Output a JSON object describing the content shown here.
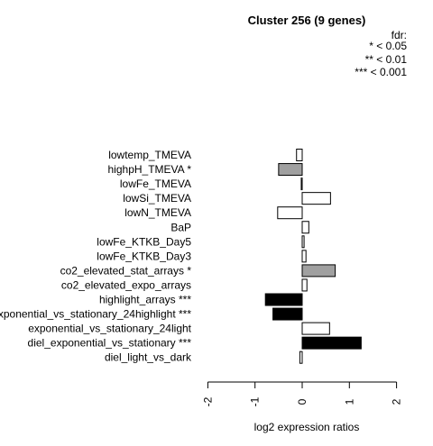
{
  "chart_data": {
    "type": "bar",
    "orientation": "horizontal",
    "title": "Cluster 256 (9 genes)",
    "xlabel": "log2 expression ratios",
    "xlim": [
      -2,
      2
    ],
    "xticks": [
      -2,
      -1,
      0,
      1,
      2
    ],
    "xtick_labels": [
      "-2",
      "-1",
      "0",
      "1",
      "2"
    ],
    "legend": {
      "title": "fdr:",
      "entries": [
        "* < 0.05",
        "** < 0.01",
        "*** < 0.001"
      ],
      "placement": "top-right"
    },
    "colors": {
      "none": "#ffffff",
      "*": "#a0a0a0",
      "***": "#000000"
    },
    "categories": [
      {
        "label": "lowtemp_TMEVA",
        "value": -0.12,
        "signif": "none"
      },
      {
        "label": "highpH_TMEVA *",
        "value": -0.5,
        "signif": "*"
      },
      {
        "label": "lowFe_TMEVA",
        "value": -0.02,
        "signif": "none"
      },
      {
        "label": "lowSi_TMEVA",
        "value": 0.6,
        "signif": "none"
      },
      {
        "label": "lowN_TMEVA",
        "value": -0.52,
        "signif": "none"
      },
      {
        "label": "BaP",
        "value": 0.14,
        "signif": "none"
      },
      {
        "label": "lowFe_KTKB_Day5",
        "value": 0.04,
        "signif": "none"
      },
      {
        "label": "lowFe_KTKB_Day3",
        "value": 0.08,
        "signif": "none"
      },
      {
        "label": "co2_elevated_stat_arrays *",
        "value": 0.7,
        "signif": "*"
      },
      {
        "label": "co2_elevated_expo_arrays",
        "value": 0.1,
        "signif": "none"
      },
      {
        "label": "highlight_arrays ***",
        "value": -0.78,
        "signif": "***"
      },
      {
        "label": "exponential_vs_stationary_24highlight ***",
        "value": -0.62,
        "signif": "***"
      },
      {
        "label": "exponential_vs_stationary_24light",
        "value": 0.58,
        "signif": "none"
      },
      {
        "label": "diel_exponential_vs_stationary ***",
        "value": 1.25,
        "signif": "***"
      },
      {
        "label": "diel_light_vs_dark",
        "value": -0.05,
        "signif": "none"
      }
    ]
  }
}
